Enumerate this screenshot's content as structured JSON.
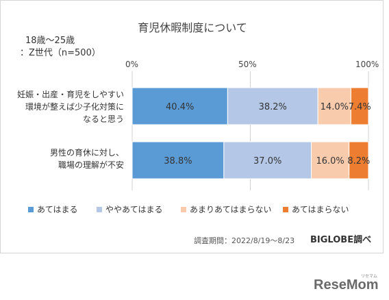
{
  "chart_data": {
    "type": "bar",
    "orientation": "horizontal",
    "stacked": true,
    "title": "育児休暇制度について",
    "subtitle_line1": "18歳～25歳",
    "subtitle_line2": "：Z世代（n=500）",
    "x_ticks": [
      "0%",
      "50%",
      "100%"
    ],
    "xlim": [
      0,
      100
    ],
    "categories": [
      "妊娠・出産・育児をしやすい\n環境が整えば少子化対策に\nなると思う",
      "男性の育休に対し、\n職場の理解が不安"
    ],
    "series": [
      {
        "name": "あてはまる",
        "color": "#5b9bd5",
        "values": [
          40.4,
          38.8
        ],
        "labels": [
          "40.4%",
          "38.8%"
        ]
      },
      {
        "name": "ややあてはまる",
        "color": "#b4c7e7",
        "values": [
          38.2,
          37.0
        ],
        "labels": [
          "38.2%",
          "37.0%"
        ]
      },
      {
        "name": "あまりあてはまらない",
        "color": "#f8cbad",
        "values": [
          14.0,
          16.0
        ],
        "labels": [
          "14.0%",
          "16.0%"
        ]
      },
      {
        "name": "あてはまらない",
        "color": "#ed7d31",
        "values": [
          7.4,
          8.2
        ],
        "labels": [
          "7.4%",
          "8.2%"
        ]
      }
    ],
    "grid": true,
    "legend_position": "bottom"
  },
  "footer": {
    "survey_period": "調査期間：2022/8/19～8/23",
    "source": "BIGLOBE調べ"
  },
  "watermark": {
    "logo": "ReseMom",
    "small_text": "リセマム"
  }
}
